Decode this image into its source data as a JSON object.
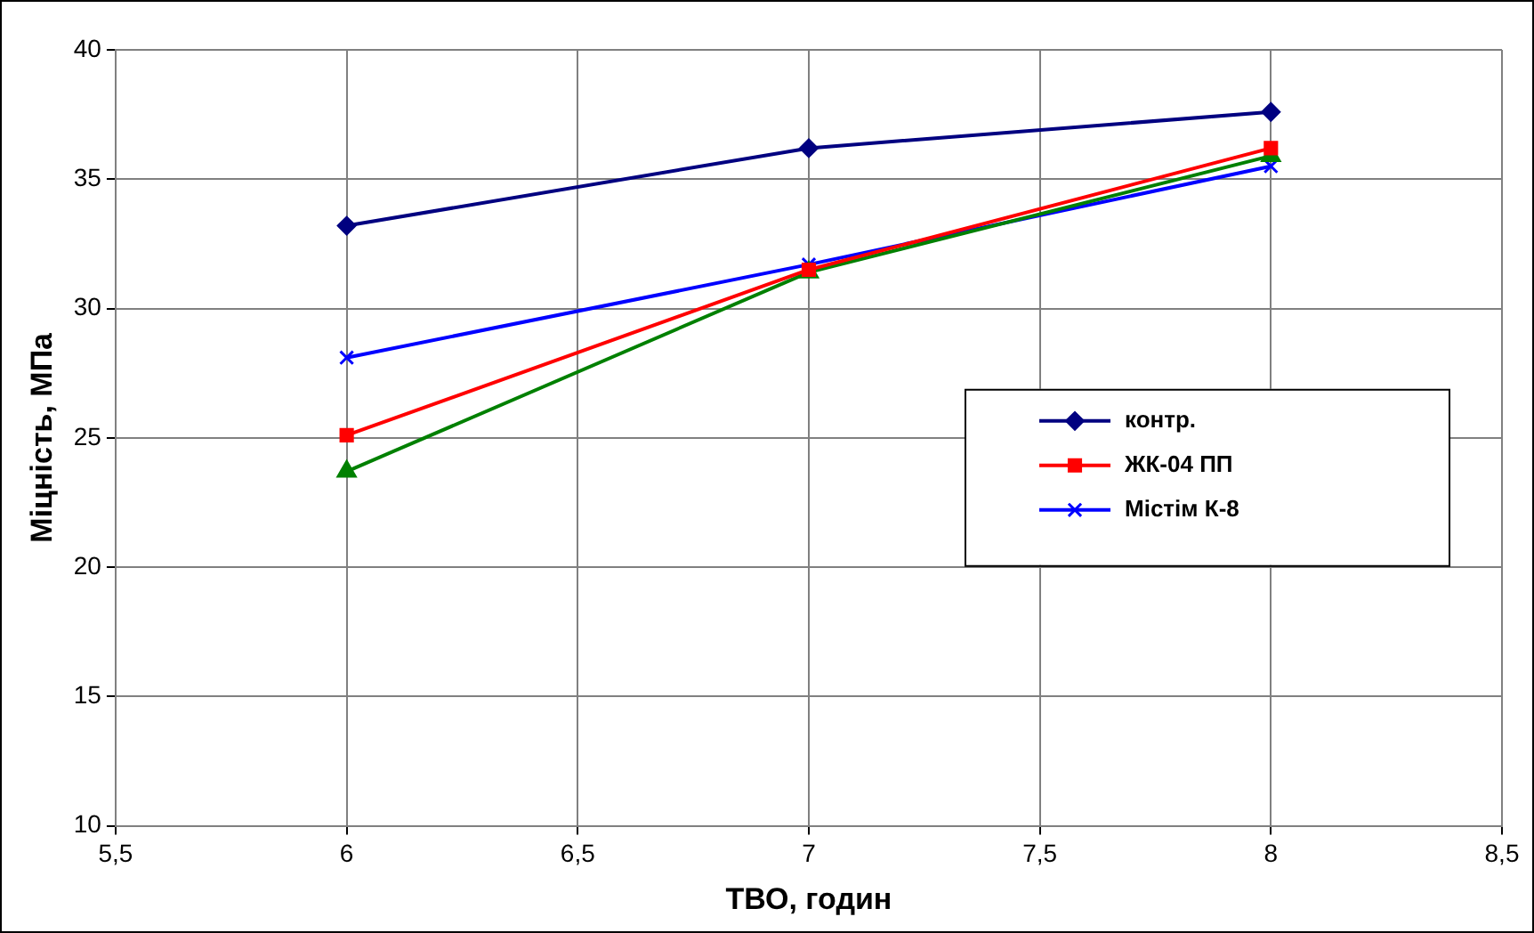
{
  "chart_data": {
    "type": "line",
    "xlabel": "ТВО, годин",
    "ylabel": "Міцність, МПа",
    "xlim": [
      5.5,
      8.5
    ],
    "xticks": [
      {
        "value": 5.5,
        "label": "5,5"
      },
      6,
      {
        "value": 6.5,
        "label": "6,5"
      },
      7,
      {
        "value": 7.5,
        "label": "7,5"
      },
      8,
      {
        "value": 8.5,
        "label": "8,5"
      }
    ],
    "ylim": [
      10,
      40
    ],
    "yticks": [
      10,
      15,
      20,
      25,
      30,
      35,
      40
    ],
    "grid": true,
    "legend": "right",
    "x": [
      6,
      7,
      8
    ],
    "series": [
      {
        "name": "контр.",
        "color": "#000080",
        "marker": "diamond",
        "values": [
          33.2,
          36.2,
          37.6
        ]
      },
      {
        "name": "ЖК-04 ПП",
        "color": "#ff0000",
        "marker": "square",
        "values": [
          25.1,
          31.5,
          36.2
        ]
      },
      {
        "color": "#008000",
        "marker": "triangle",
        "values": [
          23.7,
          31.4,
          35.9
        ]
      },
      {
        "name": "Містім К-8",
        "color": "#0000ff",
        "marker": "cross",
        "values": [
          28.1,
          31.7,
          35.5
        ]
      }
    ]
  }
}
